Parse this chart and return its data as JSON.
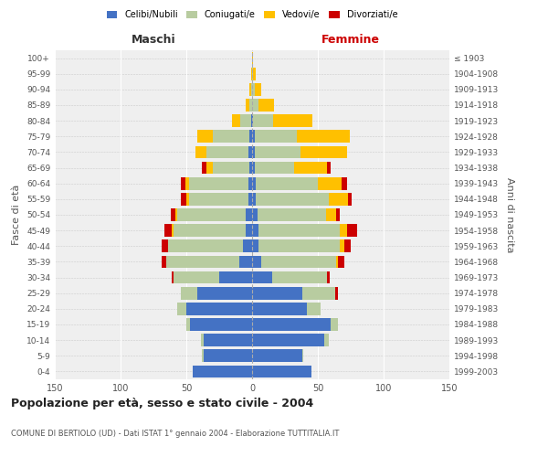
{
  "age_groups": [
    "0-4",
    "5-9",
    "10-14",
    "15-19",
    "20-24",
    "25-29",
    "30-34",
    "35-39",
    "40-44",
    "45-49",
    "50-54",
    "55-59",
    "60-64",
    "65-69",
    "70-74",
    "75-79",
    "80-84",
    "85-89",
    "90-94",
    "95-99",
    "100+"
  ],
  "birth_years": [
    "1999-2003",
    "1994-1998",
    "1989-1993",
    "1984-1988",
    "1979-1983",
    "1974-1978",
    "1969-1973",
    "1964-1968",
    "1959-1963",
    "1954-1958",
    "1949-1953",
    "1944-1948",
    "1939-1943",
    "1934-1938",
    "1929-1933",
    "1924-1928",
    "1919-1923",
    "1914-1918",
    "1909-1913",
    "1904-1908",
    "≤ 1903"
  ],
  "male": {
    "celibi": [
      45,
      37,
      37,
      47,
      50,
      42,
      25,
      10,
      7,
      5,
      5,
      3,
      3,
      2,
      3,
      2,
      1,
      0,
      0,
      0,
      0
    ],
    "coniugati": [
      0,
      1,
      2,
      3,
      7,
      12,
      35,
      55,
      57,
      55,
      52,
      45,
      45,
      28,
      32,
      28,
      8,
      2,
      1,
      0,
      0
    ],
    "vedovi": [
      0,
      0,
      0,
      0,
      0,
      0,
      0,
      0,
      0,
      1,
      1,
      2,
      3,
      5,
      8,
      12,
      6,
      3,
      1,
      1,
      0
    ],
    "divorziati": [
      0,
      0,
      0,
      0,
      0,
      0,
      1,
      4,
      5,
      6,
      4,
      4,
      3,
      3,
      0,
      0,
      0,
      0,
      0,
      0,
      0
    ]
  },
  "female": {
    "nubili": [
      45,
      38,
      55,
      60,
      42,
      38,
      15,
      7,
      5,
      5,
      4,
      3,
      3,
      2,
      2,
      2,
      1,
      0,
      0,
      0,
      0
    ],
    "coniugate": [
      0,
      1,
      3,
      5,
      10,
      25,
      42,
      57,
      62,
      62,
      52,
      55,
      47,
      30,
      35,
      32,
      15,
      5,
      2,
      1,
      0
    ],
    "vedove": [
      0,
      0,
      0,
      0,
      0,
      0,
      0,
      1,
      3,
      5,
      8,
      15,
      18,
      25,
      35,
      40,
      30,
      12,
      5,
      2,
      1
    ],
    "divorziate": [
      0,
      0,
      0,
      0,
      0,
      2,
      2,
      5,
      5,
      8,
      3,
      3,
      4,
      3,
      0,
      0,
      0,
      0,
      0,
      0,
      0
    ]
  },
  "colors": {
    "celibi": "#4472c4",
    "coniugati": "#b8cca0",
    "vedovi": "#ffc000",
    "divorziati": "#cc0000"
  },
  "xlim": 150,
  "title": "Popolazione per età, sesso e stato civile - 2004",
  "subtitle": "COMUNE DI BERTIOLO (UD) - Dati ISTAT 1° gennaio 2004 - Elaborazione TUTTITALIA.IT",
  "ylabel_left": "Fasce di età",
  "ylabel_right": "Anni di nascita",
  "xlabel_left": "Maschi",
  "xlabel_right": "Femmine",
  "legend_labels": [
    "Celibi/Nubili",
    "Coniugati/e",
    "Vedovi/e",
    "Divorziati/e"
  ],
  "bg_color": "#ffffff",
  "plot_bg_color": "#efefef"
}
